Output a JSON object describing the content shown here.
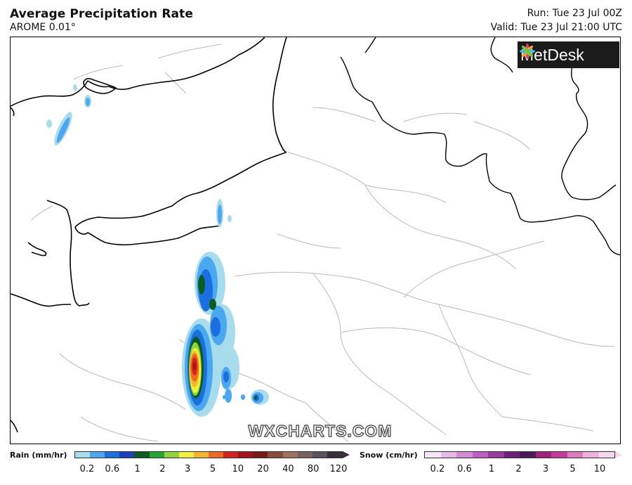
{
  "header": {
    "title": "Average Precipitation Rate",
    "model": "AROME 0.01°",
    "run": "Run: Tue 23 Jul 00Z",
    "valid": "Valid: Tue 23 Jul 21:00 UTC"
  },
  "branding": {
    "logo_text": "MetDesk",
    "watermark": "WXCHARTS.COM"
  },
  "legend": {
    "rain": {
      "title": "Rain (mm/hr)",
      "ticks": [
        "0.2",
        "0.6",
        "1",
        "2",
        "3",
        "5",
        "10",
        "20",
        "40",
        "80",
        "120"
      ],
      "colors": [
        "#a6dcec",
        "#4aa8f0",
        "#1c6fe0",
        "#1a3fbf",
        "#0a5c1f",
        "#25a72f",
        "#8fd63a",
        "#f4f03a",
        "#f7b52c",
        "#ee6a1f",
        "#d8221d",
        "#a5121b",
        "#7a1a17",
        "#8a4b3a",
        "#a07060",
        "#7a6060",
        "#565060",
        "#353035"
      ]
    },
    "snow": {
      "title": "Snow (cm/hr)",
      "ticks": [
        "0.2",
        "0.6",
        "1",
        "2",
        "3",
        "5",
        "10"
      ],
      "colors": [
        "#f5e6f5",
        "#e6b8e8",
        "#d48cd6",
        "#c05cc4",
        "#9a3aa0",
        "#6e1f7a",
        "#4a1a5a",
        "#a3207a",
        "#c83a9a",
        "#e07ac0",
        "#efb0dc",
        "#f6d8ee"
      ]
    }
  },
  "map": {
    "colors": {
      "coastline": "#000000",
      "border": "#000000",
      "rivers": "#b4b4b4",
      "background": "#ffffff"
    }
  }
}
